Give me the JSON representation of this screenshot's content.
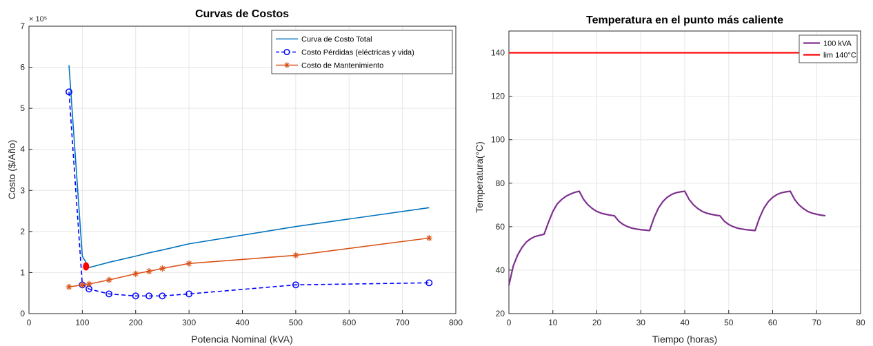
{
  "chart_data": [
    {
      "type": "line",
      "title": "Curvas de Costos",
      "xlabel": "Potencia Nominal (kVA)",
      "ylabel": "Costo ($/Año)",
      "y_exponent_label": "× 10⁵",
      "xlim": [
        0,
        800
      ],
      "ylim": [
        0,
        7
      ],
      "xticks": [
        0,
        100,
        200,
        300,
        400,
        500,
        600,
        700,
        800
      ],
      "yticks": [
        0,
        1,
        2,
        3,
        4,
        5,
        6,
        7
      ],
      "grid": true,
      "legend_position": "top-right",
      "series": [
        {
          "name": "Curva de Costo Total",
          "color": "#0072BD",
          "style": "solid",
          "marker": "none",
          "x": [
            75,
            100,
            112.5,
            150,
            200,
            225,
            250,
            300,
            500,
            750
          ],
          "y": [
            6.05,
            1.4,
            1.12,
            1.25,
            1.4,
            1.48,
            1.55,
            1.7,
            2.12,
            2.58
          ]
        },
        {
          "name": "Costo Pérdidas (eléctricas y vida)",
          "color": "#0000FF",
          "style": "dashed",
          "marker": "circle",
          "x": [
            75,
            100,
            112.5,
            150,
            200,
            225,
            250,
            300,
            500,
            750
          ],
          "y": [
            5.4,
            0.7,
            0.6,
            0.48,
            0.43,
            0.43,
            0.43,
            0.48,
            0.7,
            0.75
          ]
        },
        {
          "name": "Costo de Mantenimiento",
          "color": "#D95319",
          "style": "solid",
          "marker": "asterisk",
          "x": [
            75,
            100,
            112.5,
            150,
            200,
            225,
            250,
            300,
            500,
            750
          ],
          "y": [
            0.65,
            0.7,
            0.72,
            0.82,
            0.97,
            1.03,
            1.1,
            1.22,
            1.42,
            1.84
          ]
        }
      ],
      "highlight_point": {
        "x": 107,
        "y": 1.15,
        "color": "#FF0000"
      }
    },
    {
      "type": "line",
      "title": "Temperatura en el punto más caliente",
      "xlabel": "Tiempo (horas)",
      "ylabel": "Temperatura(°C)",
      "xlim": [
        0,
        80
      ],
      "ylim": [
        20,
        150
      ],
      "xticks": [
        0,
        10,
        20,
        30,
        40,
        50,
        60,
        70,
        80
      ],
      "yticks": [
        20,
        40,
        60,
        80,
        100,
        120,
        140
      ],
      "grid": true,
      "legend_position": "top-right",
      "series": [
        {
          "name": "100 kVA",
          "color": "#7E2F8E",
          "style": "solid",
          "x": [
            0,
            1,
            2,
            3,
            4,
            5,
            6,
            7,
            8,
            9,
            10,
            11,
            12,
            13,
            14,
            15,
            16,
            17,
            18,
            19,
            20,
            21,
            22,
            23,
            24,
            25,
            26,
            27,
            28,
            29,
            30,
            31,
            32,
            33,
            34,
            35,
            36,
            37,
            38,
            39,
            40,
            41,
            42,
            43,
            44,
            45,
            46,
            47,
            48,
            49,
            50,
            51,
            52,
            53,
            54,
            55,
            56,
            57,
            58,
            59,
            60,
            61,
            62,
            63,
            64,
            65,
            66,
            67,
            68,
            69,
            70,
            71,
            72
          ],
          "y": [
            33,
            42,
            47,
            50.5,
            53,
            54.5,
            55.5,
            56,
            56.5,
            62,
            67,
            70.5,
            72.5,
            74,
            75,
            75.8,
            76.3,
            72.5,
            70,
            68.3,
            67,
            66.2,
            65.7,
            65.3,
            65,
            62.5,
            61,
            60,
            59.3,
            58.9,
            58.6,
            58.4,
            58.2,
            64,
            68.5,
            71.5,
            73.5,
            74.8,
            75.6,
            76,
            76.3,
            72.5,
            70,
            68.3,
            67,
            66.2,
            65.7,
            65.3,
            65,
            62.5,
            61,
            60,
            59.3,
            58.9,
            58.6,
            58.4,
            58.2,
            64,
            68.5,
            71.5,
            73.5,
            74.8,
            75.6,
            76,
            76.3,
            72.5,
            70,
            68.3,
            67,
            66.2,
            65.7,
            65.3,
            65
          ]
        },
        {
          "name": "lim 140°C",
          "color": "#FF0000",
          "style": "solid",
          "x": [
            0,
            72
          ],
          "y": [
            140,
            140
          ]
        }
      ]
    }
  ]
}
